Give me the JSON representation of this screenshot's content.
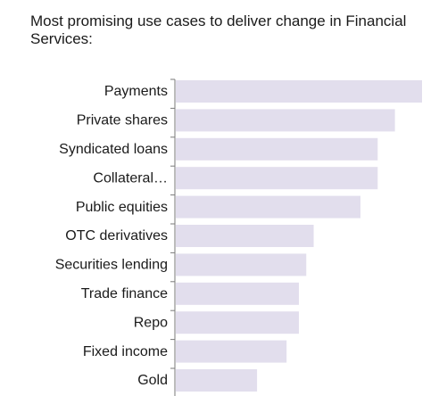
{
  "chart_data": {
    "type": "bar",
    "orientation": "horizontal",
    "title": "Most promising use cases to deliver change in Financial Services:",
    "categories": [
      "Payments",
      "Private shares",
      "Syndicated loans",
      "Collateral…",
      "Public equities",
      "OTC derivatives",
      "Securities lending",
      "Trade finance",
      "Repo",
      "Fixed income",
      "Gold"
    ],
    "values": [
      100,
      89,
      82,
      82,
      75,
      56,
      53,
      50,
      50,
      45,
      33
    ],
    "xlim": [
      0,
      100
    ],
    "grid": false,
    "legend": "none",
    "bar_color": "#e2deed",
    "axis_color": "#7a7a7a"
  }
}
